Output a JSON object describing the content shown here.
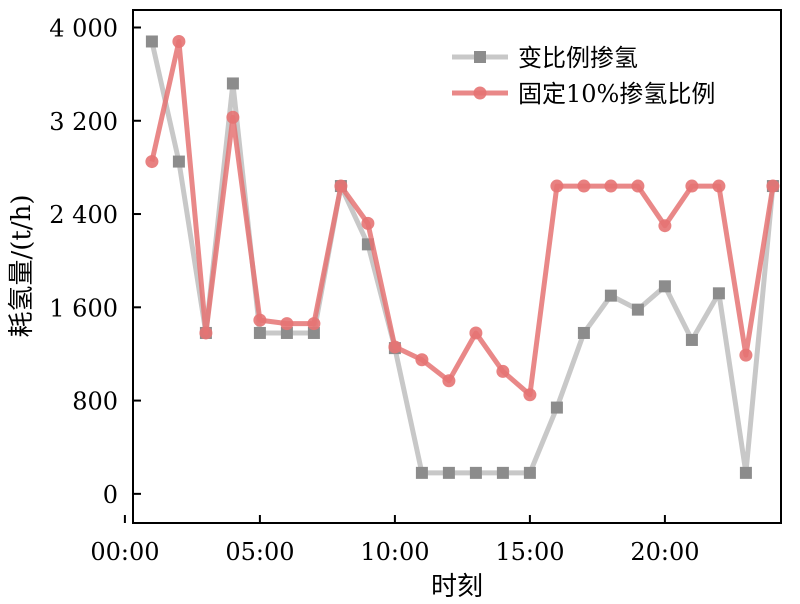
{
  "chart_data": {
    "type": "line",
    "xlabel": "时刻",
    "ylabel": "耗氢量/(t/h)",
    "xlim": [
      0.3,
      24.3
    ],
    "ylim": [
      -250,
      4150
    ],
    "x_ticks": [
      {
        "value": 0,
        "label": "00:00"
      },
      {
        "value": 5,
        "label": "05:00"
      },
      {
        "value": 10,
        "label": "10:00"
      },
      {
        "value": 15,
        "label": "15:00"
      },
      {
        "value": 20,
        "label": "20:00"
      }
    ],
    "y_ticks": [
      {
        "value": 0,
        "label": "0"
      },
      {
        "value": 800,
        "label": "800"
      },
      {
        "value": 1600,
        "label": "1 600"
      },
      {
        "value": 2400,
        "label": "2 400"
      },
      {
        "value": 3200,
        "label": "3 200"
      },
      {
        "value": 4000,
        "label": "4 000"
      }
    ],
    "grid": false,
    "legend_position": "top-right",
    "x": [
      1,
      2,
      3,
      4,
      5,
      6,
      7,
      8,
      9,
      10,
      11,
      12,
      13,
      14,
      15,
      16,
      17,
      18,
      19,
      20,
      21,
      22,
      23,
      24
    ],
    "series": [
      {
        "name": "变比例掺氢",
        "color": "#c8c8c8",
        "marker_color": "#8c8c8c",
        "marker": "square",
        "values": [
          3880,
          2850,
          1380,
          3520,
          1380,
          1380,
          1380,
          2640,
          2140,
          1250,
          180,
          180,
          180,
          180,
          180,
          740,
          1380,
          1700,
          1580,
          1780,
          1320,
          1720,
          180,
          2640
        ]
      },
      {
        "name": "固定10%掺氢比例",
        "color": "#e57373",
        "marker_color": "#e57373",
        "marker": "circle",
        "values": [
          2850,
          3880,
          1380,
          3230,
          1490,
          1460,
          1460,
          2640,
          2320,
          1260,
          1150,
          970,
          1380,
          1050,
          850,
          2640,
          2640,
          2640,
          2640,
          2300,
          2640,
          2640,
          1190,
          2640
        ]
      }
    ]
  }
}
